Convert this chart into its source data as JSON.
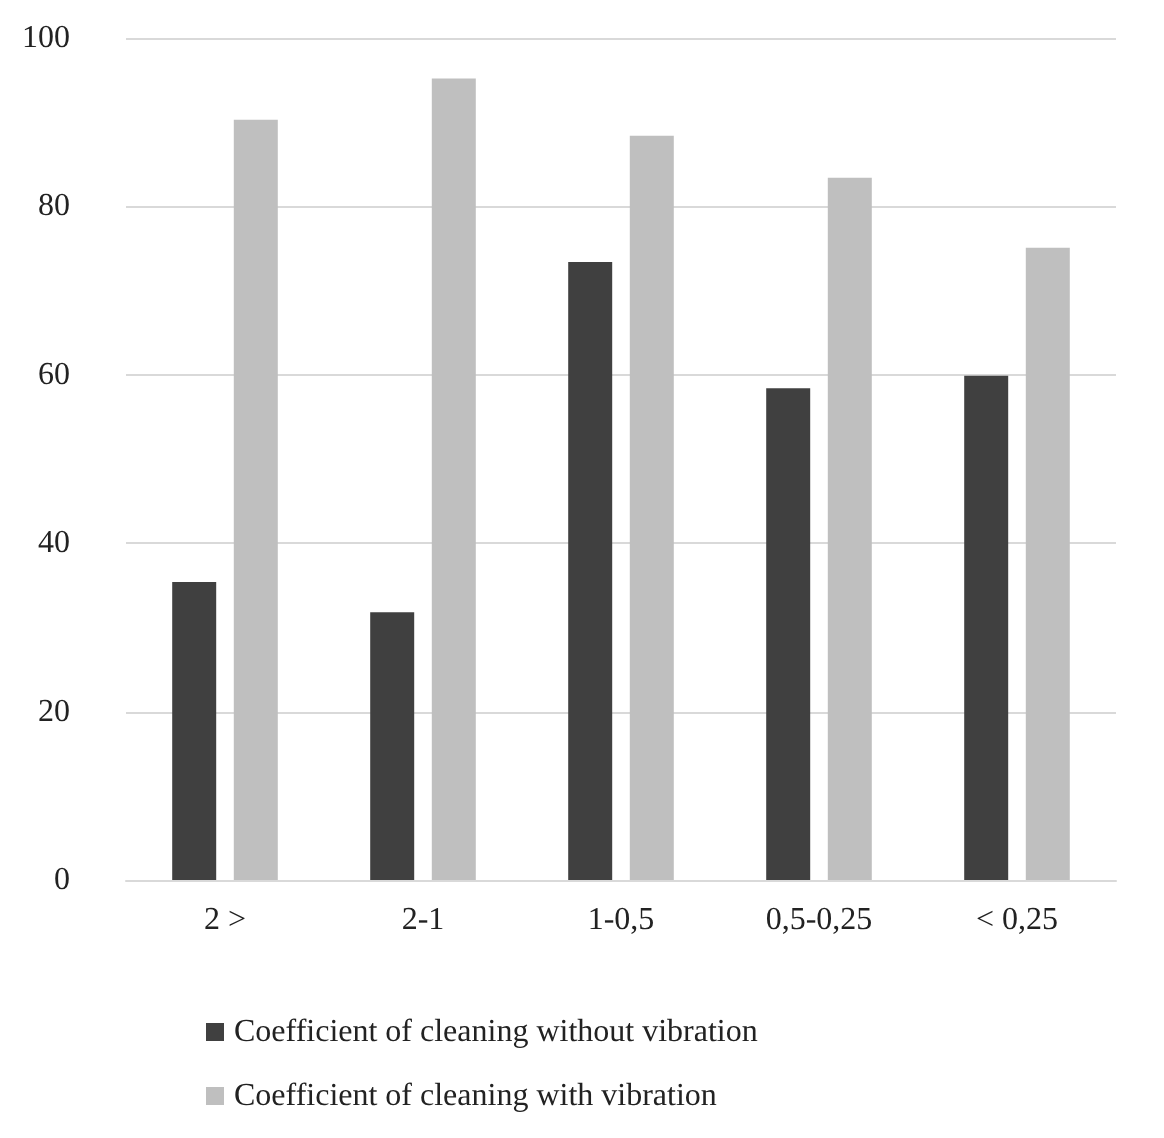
{
  "chart_data": {
    "type": "bar",
    "categories": [
      "2 >",
      "2-1",
      "1-0,5",
      "0,5-0,25",
      "< 0,25"
    ],
    "series": [
      {
        "name": "Coefficient of cleaning without vibration",
        "color": "#404040",
        "values": [
          35.4,
          31.8,
          73.4,
          58.4,
          59.9
        ]
      },
      {
        "name": "Coefficient of cleaning with vibration",
        "color": "#bfbfbf",
        "values": [
          90.3,
          95.2,
          88.4,
          83.4,
          75.1
        ]
      }
    ],
    "ylim": [
      0,
      100
    ],
    "yticks": [
      0,
      20,
      40,
      60,
      80,
      100
    ],
    "grid": "y",
    "legend": "bottom"
  }
}
